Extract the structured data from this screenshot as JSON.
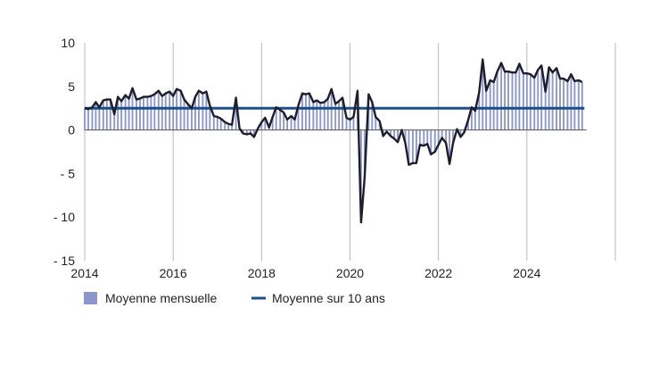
{
  "chart_data": {
    "type": "bar",
    "title": "",
    "xlabel": "",
    "ylabel": "",
    "xlim": [
      2014,
      2025.3
    ],
    "ylim": [
      -15,
      10
    ],
    "x_ticks": [
      "2014",
      "2016",
      "2018",
      "2020",
      "2022",
      "2024"
    ],
    "y_ticks": [
      "10",
      "5",
      "0",
      "- 5",
      "- 10",
      "- 15"
    ],
    "grid": "vertical",
    "legend_position": "bottom-left",
    "colors": {
      "bars": "#8b96cf",
      "line": "#1e1e2a",
      "average": "#1b4f8a"
    },
    "series": [
      {
        "name": "Moyenne mensuelle",
        "style": "bars-and-line",
        "points": [
          [
            2014.0,
            2.5
          ],
          [
            2014.08,
            2.4
          ],
          [
            2014.17,
            2.6
          ],
          [
            2014.25,
            3.2
          ],
          [
            2014.33,
            2.6
          ],
          [
            2014.42,
            3.4
          ],
          [
            2014.5,
            3.5
          ],
          [
            2014.58,
            3.5
          ],
          [
            2014.67,
            1.8
          ],
          [
            2014.75,
            3.8
          ],
          [
            2014.83,
            3.3
          ],
          [
            2014.92,
            4.0
          ],
          [
            2015.0,
            3.6
          ],
          [
            2015.08,
            4.8
          ],
          [
            2015.17,
            3.5
          ],
          [
            2015.25,
            3.6
          ],
          [
            2015.33,
            3.8
          ],
          [
            2015.42,
            3.8
          ],
          [
            2015.5,
            3.9
          ],
          [
            2015.58,
            4.1
          ],
          [
            2015.67,
            4.5
          ],
          [
            2015.75,
            3.9
          ],
          [
            2015.83,
            4.2
          ],
          [
            2015.92,
            4.4
          ],
          [
            2016.0,
            3.9
          ],
          [
            2016.08,
            4.7
          ],
          [
            2016.17,
            4.5
          ],
          [
            2016.25,
            3.5
          ],
          [
            2016.33,
            3.0
          ],
          [
            2016.42,
            2.5
          ],
          [
            2016.5,
            3.8
          ],
          [
            2016.58,
            4.5
          ],
          [
            2016.67,
            4.2
          ],
          [
            2016.75,
            4.4
          ],
          [
            2016.83,
            2.8
          ],
          [
            2016.92,
            1.6
          ],
          [
            2017.0,
            1.5
          ],
          [
            2017.08,
            1.3
          ],
          [
            2017.17,
            0.9
          ],
          [
            2017.25,
            0.7
          ],
          [
            2017.33,
            0.6
          ],
          [
            2017.42,
            3.7
          ],
          [
            2017.5,
            0.2
          ],
          [
            2017.58,
            -0.4
          ],
          [
            2017.67,
            -0.5
          ],
          [
            2017.75,
            -0.4
          ],
          [
            2017.83,
            -0.8
          ],
          [
            2017.92,
            0.2
          ],
          [
            2018.0,
            0.9
          ],
          [
            2018.08,
            1.4
          ],
          [
            2018.17,
            0.3
          ],
          [
            2018.25,
            1.5
          ],
          [
            2018.33,
            2.6
          ],
          [
            2018.42,
            2.3
          ],
          [
            2018.5,
            2.0
          ],
          [
            2018.58,
            1.2
          ],
          [
            2018.67,
            1.6
          ],
          [
            2018.75,
            1.2
          ],
          [
            2018.83,
            2.8
          ],
          [
            2018.92,
            4.2
          ],
          [
            2019.0,
            4.1
          ],
          [
            2019.08,
            4.2
          ],
          [
            2019.17,
            3.2
          ],
          [
            2019.25,
            3.4
          ],
          [
            2019.33,
            3.1
          ],
          [
            2019.42,
            3.2
          ],
          [
            2019.5,
            3.6
          ],
          [
            2019.58,
            4.7
          ],
          [
            2019.67,
            3.0
          ],
          [
            2019.75,
            3.3
          ],
          [
            2019.83,
            3.7
          ],
          [
            2019.92,
            1.4
          ],
          [
            2020.0,
            1.2
          ],
          [
            2020.08,
            1.5
          ],
          [
            2020.17,
            4.5
          ],
          [
            2020.25,
            -10.6
          ],
          [
            2020.33,
            -5.5
          ],
          [
            2020.42,
            4.1
          ],
          [
            2020.5,
            3.2
          ],
          [
            2020.58,
            1.5
          ],
          [
            2020.67,
            1.0
          ],
          [
            2020.75,
            -0.7
          ],
          [
            2020.83,
            -0.2
          ],
          [
            2020.92,
            -0.7
          ],
          [
            2021.0,
            -1.0
          ],
          [
            2021.08,
            -1.4
          ],
          [
            2021.17,
            0.0
          ],
          [
            2021.25,
            -1.5
          ],
          [
            2021.33,
            -4.0
          ],
          [
            2021.42,
            -3.8
          ],
          [
            2021.5,
            -3.8
          ],
          [
            2021.58,
            -1.7
          ],
          [
            2021.67,
            -1.8
          ],
          [
            2021.75,
            -1.6
          ],
          [
            2021.83,
            -2.8
          ],
          [
            2021.92,
            -2.5
          ],
          [
            2022.0,
            -1.7
          ],
          [
            2022.08,
            -0.9
          ],
          [
            2022.17,
            -1.5
          ],
          [
            2022.25,
            -3.9
          ],
          [
            2022.33,
            -1.5
          ],
          [
            2022.42,
            0.1
          ],
          [
            2022.5,
            -0.8
          ],
          [
            2022.58,
            -0.3
          ],
          [
            2022.67,
            1.1
          ],
          [
            2022.75,
            2.6
          ],
          [
            2022.83,
            2.2
          ],
          [
            2022.92,
            4.3
          ],
          [
            2023.0,
            8.1
          ],
          [
            2023.08,
            4.5
          ],
          [
            2023.17,
            5.7
          ],
          [
            2023.25,
            5.5
          ],
          [
            2023.33,
            6.7
          ],
          [
            2023.42,
            7.7
          ],
          [
            2023.5,
            6.7
          ],
          [
            2023.58,
            6.7
          ],
          [
            2023.67,
            6.6
          ],
          [
            2023.75,
            6.6
          ],
          [
            2023.83,
            7.6
          ],
          [
            2023.92,
            6.5
          ],
          [
            2024.0,
            6.5
          ],
          [
            2024.08,
            6.4
          ],
          [
            2024.17,
            6.0
          ],
          [
            2024.25,
            6.9
          ],
          [
            2024.33,
            7.4
          ],
          [
            2024.42,
            4.4
          ],
          [
            2024.5,
            7.2
          ],
          [
            2024.58,
            6.6
          ],
          [
            2024.67,
            7.1
          ],
          [
            2024.75,
            5.9
          ],
          [
            2024.83,
            5.9
          ],
          [
            2024.92,
            5.6
          ],
          [
            2025.0,
            6.4
          ],
          [
            2025.08,
            5.6
          ],
          [
            2025.17,
            5.7
          ],
          [
            2025.25,
            5.5
          ]
        ]
      },
      {
        "name": "Moyenne sur 10 ans",
        "style": "horizontal-line",
        "value": 2.5
      }
    ]
  }
}
